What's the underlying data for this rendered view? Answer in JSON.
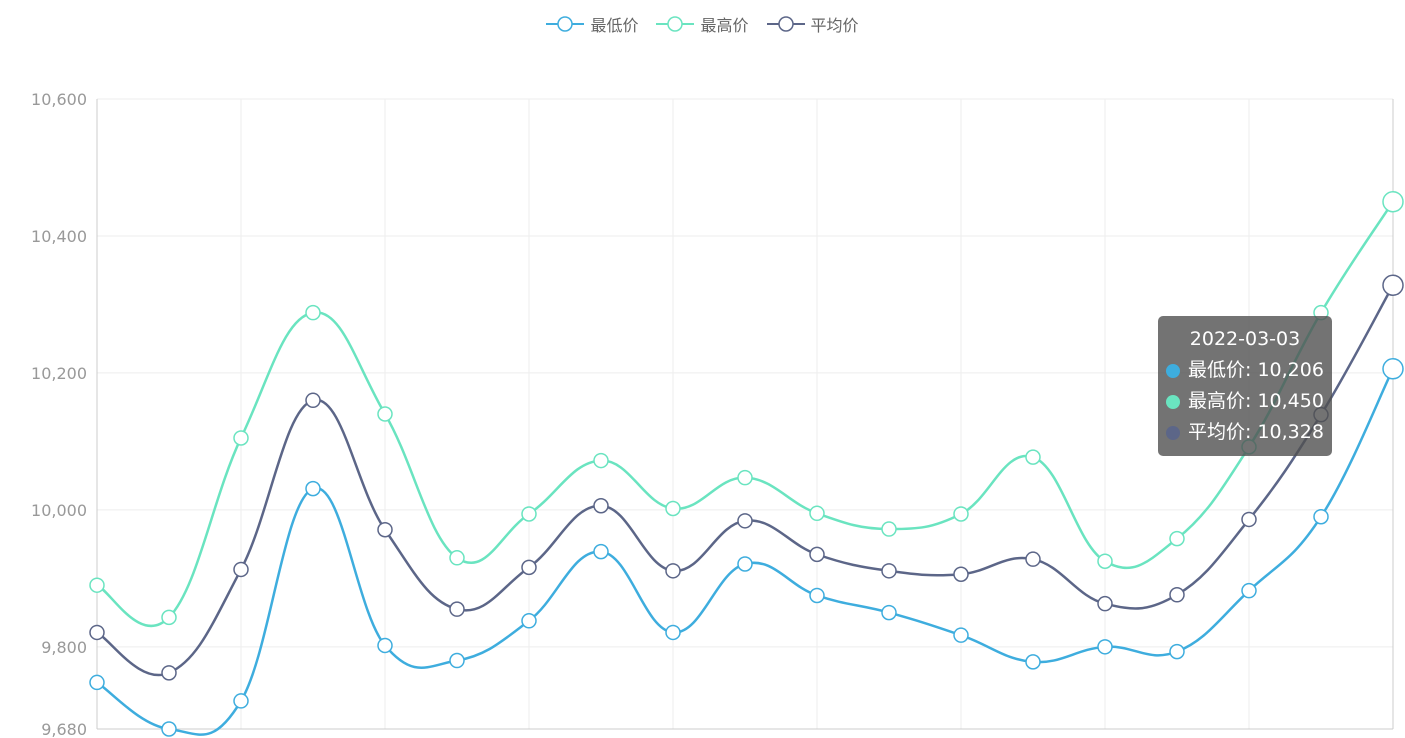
{
  "colors": {
    "series_low": "#3eadde",
    "series_high": "#6ae4c0",
    "series_avg": "#5c6688",
    "grid": "#eeeeee",
    "axis": "#cccccc"
  },
  "legend": {
    "items": [
      {
        "label": "最低价",
        "color": "#3eadde"
      },
      {
        "label": "最高价",
        "color": "#6ae4c0"
      },
      {
        "label": "平均价",
        "color": "#5c6688"
      }
    ]
  },
  "tooltip": {
    "title": "2022-03-03",
    "rows": [
      {
        "label": "最低价",
        "value": "10,206",
        "color": "#3eadde"
      },
      {
        "label": "最高价",
        "value": "10,450",
        "color": "#6ae4c0"
      },
      {
        "label": "平均价",
        "value": "10,328",
        "color": "#5c6688"
      }
    ]
  },
  "chart_data": {
    "type": "line",
    "title": "",
    "xlabel": "",
    "ylabel": "",
    "ylim": [
      9680,
      10600
    ],
    "y_ticks": [
      {
        "value": 9680,
        "label": "9,680"
      },
      {
        "value": 9800,
        "label": "9,800"
      },
      {
        "value": 10000,
        "label": "10,000"
      },
      {
        "value": 10200,
        "label": "10,200"
      },
      {
        "value": 10400,
        "label": "10,400"
      },
      {
        "value": 10600,
        "label": "10,600"
      }
    ],
    "grid": true,
    "legend_position": "top-center",
    "smooth": true,
    "point_count": 19,
    "series": [
      {
        "name": "最低价",
        "color": "#3eadde",
        "values": [
          9748,
          9680,
          9721,
          10031,
          9802,
          9780,
          9838,
          9939,
          9821,
          9921,
          9875,
          9850,
          9817,
          9778,
          9800,
          9793,
          9882,
          9990,
          10206
        ]
      },
      {
        "name": "最高价",
        "color": "#6ae4c0",
        "values": [
          9890,
          9843,
          10105,
          10288,
          10140,
          9930,
          9994,
          10072,
          10002,
          10047,
          9995,
          9972,
          9994,
          10077,
          9925,
          9958,
          10092,
          10288,
          10450
        ]
      },
      {
        "name": "平均价",
        "color": "#5c6688",
        "values": [
          9821,
          9762,
          9913,
          10160,
          9971,
          9855,
          9916,
          10006,
          9911,
          9984,
          9935,
          9911,
          9906,
          9928,
          9863,
          9876,
          9986,
          10139,
          10328
        ]
      }
    ]
  }
}
